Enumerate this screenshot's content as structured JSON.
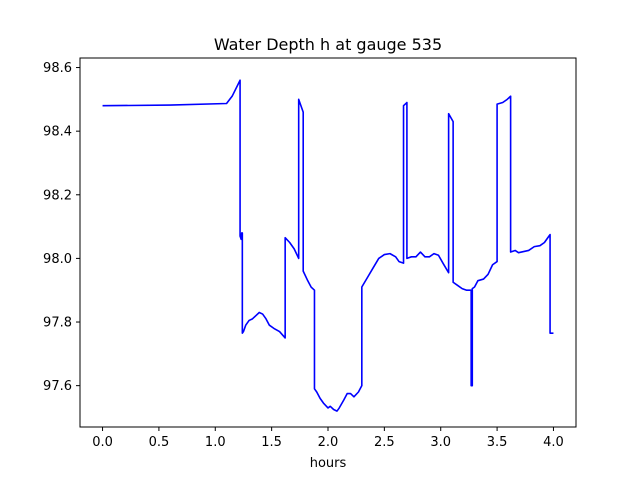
{
  "chart_data": {
    "type": "line",
    "title": "Water Depth h at gauge 535",
    "xlabel": "hours",
    "ylabel": "",
    "xlim": [
      -0.2,
      4.2
    ],
    "ylim": [
      97.47,
      98.63
    ],
    "xticks": [
      0.0,
      0.5,
      1.0,
      1.5,
      2.0,
      2.5,
      3.0,
      3.5,
      4.0
    ],
    "xtick_labels": [
      "0.0",
      "0.5",
      "1.0",
      "1.5",
      "2.0",
      "2.5",
      "3.0",
      "3.5",
      "4.0"
    ],
    "yticks": [
      97.6,
      97.8,
      98.0,
      98.2,
      98.4,
      98.6
    ],
    "ytick_labels": [
      "97.6",
      "97.8",
      "98.0",
      "98.2",
      "98.4",
      "98.6"
    ],
    "grid": false,
    "series": [
      {
        "color": "#0000ff",
        "points": [
          [
            0.0,
            98.48
          ],
          [
            0.6,
            98.482
          ],
          [
            1.1,
            98.487
          ],
          [
            1.15,
            98.51
          ],
          [
            1.22,
            98.56
          ],
          [
            1.22,
            98.07
          ],
          [
            1.23,
            98.06
          ],
          [
            1.235,
            98.08
          ],
          [
            1.24,
            98.08
          ],
          [
            1.24,
            97.765
          ],
          [
            1.25,
            97.77
          ],
          [
            1.27,
            97.79
          ],
          [
            1.3,
            97.805
          ],
          [
            1.33,
            97.81
          ],
          [
            1.36,
            97.82
          ],
          [
            1.39,
            97.83
          ],
          [
            1.42,
            97.825
          ],
          [
            1.45,
            97.81
          ],
          [
            1.48,
            97.79
          ],
          [
            1.52,
            97.78
          ],
          [
            1.57,
            97.77
          ],
          [
            1.62,
            97.75
          ],
          [
            1.62,
            98.065
          ],
          [
            1.66,
            98.05
          ],
          [
            1.7,
            98.03
          ],
          [
            1.74,
            98.0
          ],
          [
            1.74,
            98.5
          ],
          [
            1.78,
            98.46
          ],
          [
            1.78,
            97.96
          ],
          [
            1.82,
            97.93
          ],
          [
            1.85,
            97.91
          ],
          [
            1.88,
            97.9
          ],
          [
            1.88,
            97.59
          ],
          [
            1.9,
            97.58
          ],
          [
            1.93,
            97.56
          ],
          [
            1.96,
            97.545
          ],
          [
            2.0,
            97.53
          ],
          [
            2.02,
            97.535
          ],
          [
            2.05,
            97.525
          ],
          [
            2.08,
            97.52
          ],
          [
            2.1,
            97.53
          ],
          [
            2.14,
            97.555
          ],
          [
            2.17,
            97.575
          ],
          [
            2.2,
            97.575
          ],
          [
            2.23,
            97.565
          ],
          [
            2.27,
            97.58
          ],
          [
            2.3,
            97.6
          ],
          [
            2.3,
            97.91
          ],
          [
            2.35,
            97.94
          ],
          [
            2.4,
            97.97
          ],
          [
            2.45,
            98.0
          ],
          [
            2.5,
            98.012
          ],
          [
            2.55,
            98.015
          ],
          [
            2.6,
            98.005
          ],
          [
            2.63,
            97.99
          ],
          [
            2.67,
            97.985
          ],
          [
            2.67,
            98.48
          ],
          [
            2.7,
            98.49
          ],
          [
            2.7,
            98.0
          ],
          [
            2.74,
            98.005
          ],
          [
            2.78,
            98.005
          ],
          [
            2.82,
            98.02
          ],
          [
            2.86,
            98.005
          ],
          [
            2.9,
            98.005
          ],
          [
            2.94,
            98.015
          ],
          [
            2.98,
            98.01
          ],
          [
            3.02,
            97.985
          ],
          [
            3.07,
            97.955
          ],
          [
            3.07,
            98.455
          ],
          [
            3.11,
            98.43
          ],
          [
            3.11,
            97.925
          ],
          [
            3.15,
            97.915
          ],
          [
            3.19,
            97.905
          ],
          [
            3.23,
            97.9
          ],
          [
            3.27,
            97.9
          ],
          [
            3.27,
            97.6
          ],
          [
            3.28,
            97.6
          ],
          [
            3.28,
            97.905
          ],
          [
            3.3,
            97.91
          ],
          [
            3.33,
            97.93
          ],
          [
            3.38,
            97.935
          ],
          [
            3.42,
            97.95
          ],
          [
            3.46,
            97.98
          ],
          [
            3.5,
            97.99
          ],
          [
            3.5,
            98.485
          ],
          [
            3.55,
            98.49
          ],
          [
            3.59,
            98.5
          ],
          [
            3.62,
            98.51
          ],
          [
            3.62,
            98.02
          ],
          [
            3.66,
            98.025
          ],
          [
            3.69,
            98.018
          ],
          [
            3.74,
            98.022
          ],
          [
            3.78,
            98.025
          ],
          [
            3.83,
            98.037
          ],
          [
            3.88,
            98.04
          ],
          [
            3.92,
            98.05
          ],
          [
            3.96,
            98.07
          ],
          [
            3.97,
            98.075
          ],
          [
            3.97,
            97.765
          ],
          [
            4.0,
            97.765
          ]
        ]
      }
    ]
  }
}
